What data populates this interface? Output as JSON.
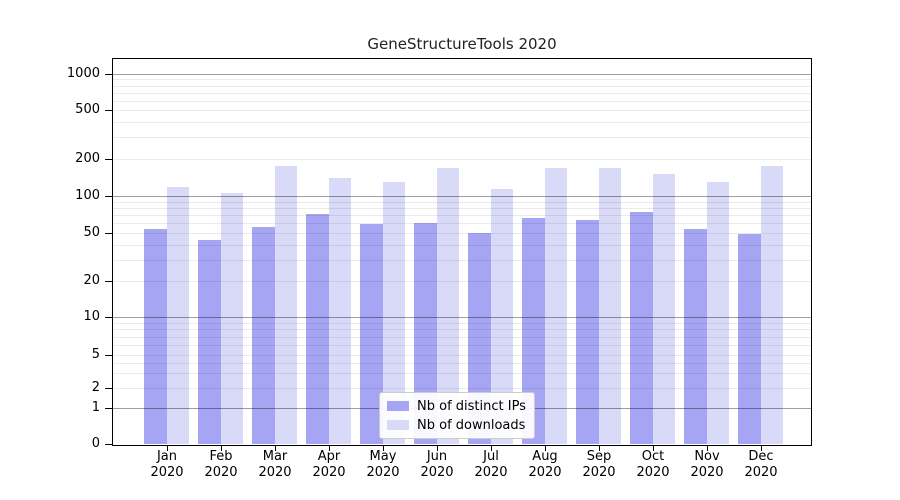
{
  "title": "GeneStructureTools 2020",
  "chart_data": {
    "type": "bar",
    "title": "GeneStructureTools 2020",
    "xlabel": "",
    "ylabel": "",
    "yscale": "symlog",
    "ylim": [
      0,
      1300
    ],
    "grid": "both",
    "legend_position": "lower center inside plot",
    "yticks": [
      0,
      1,
      2,
      5,
      10,
      20,
      50,
      100,
      200,
      500,
      1000
    ],
    "categories": [
      "Jan 2020",
      "Feb 2020",
      "Mar 2020",
      "Apr 2020",
      "May 2020",
      "Jun 2020",
      "Jul 2020",
      "Aug 2020",
      "Sep 2020",
      "Oct 2020",
      "Nov 2020",
      "Dec 2020"
    ],
    "series": [
      {
        "name": "Nb of distinct IPs",
        "color": "#a5a5f3",
        "values": [
          54,
          44,
          56,
          71,
          59,
          60,
          50,
          66,
          64,
          74,
          54,
          49
        ]
      },
      {
        "name": "Nb of downloads",
        "color": "#d9d9f8",
        "values": [
          118,
          105,
          175,
          140,
          129,
          170,
          115,
          168,
          170,
          150,
          130,
          177
        ]
      }
    ]
  }
}
